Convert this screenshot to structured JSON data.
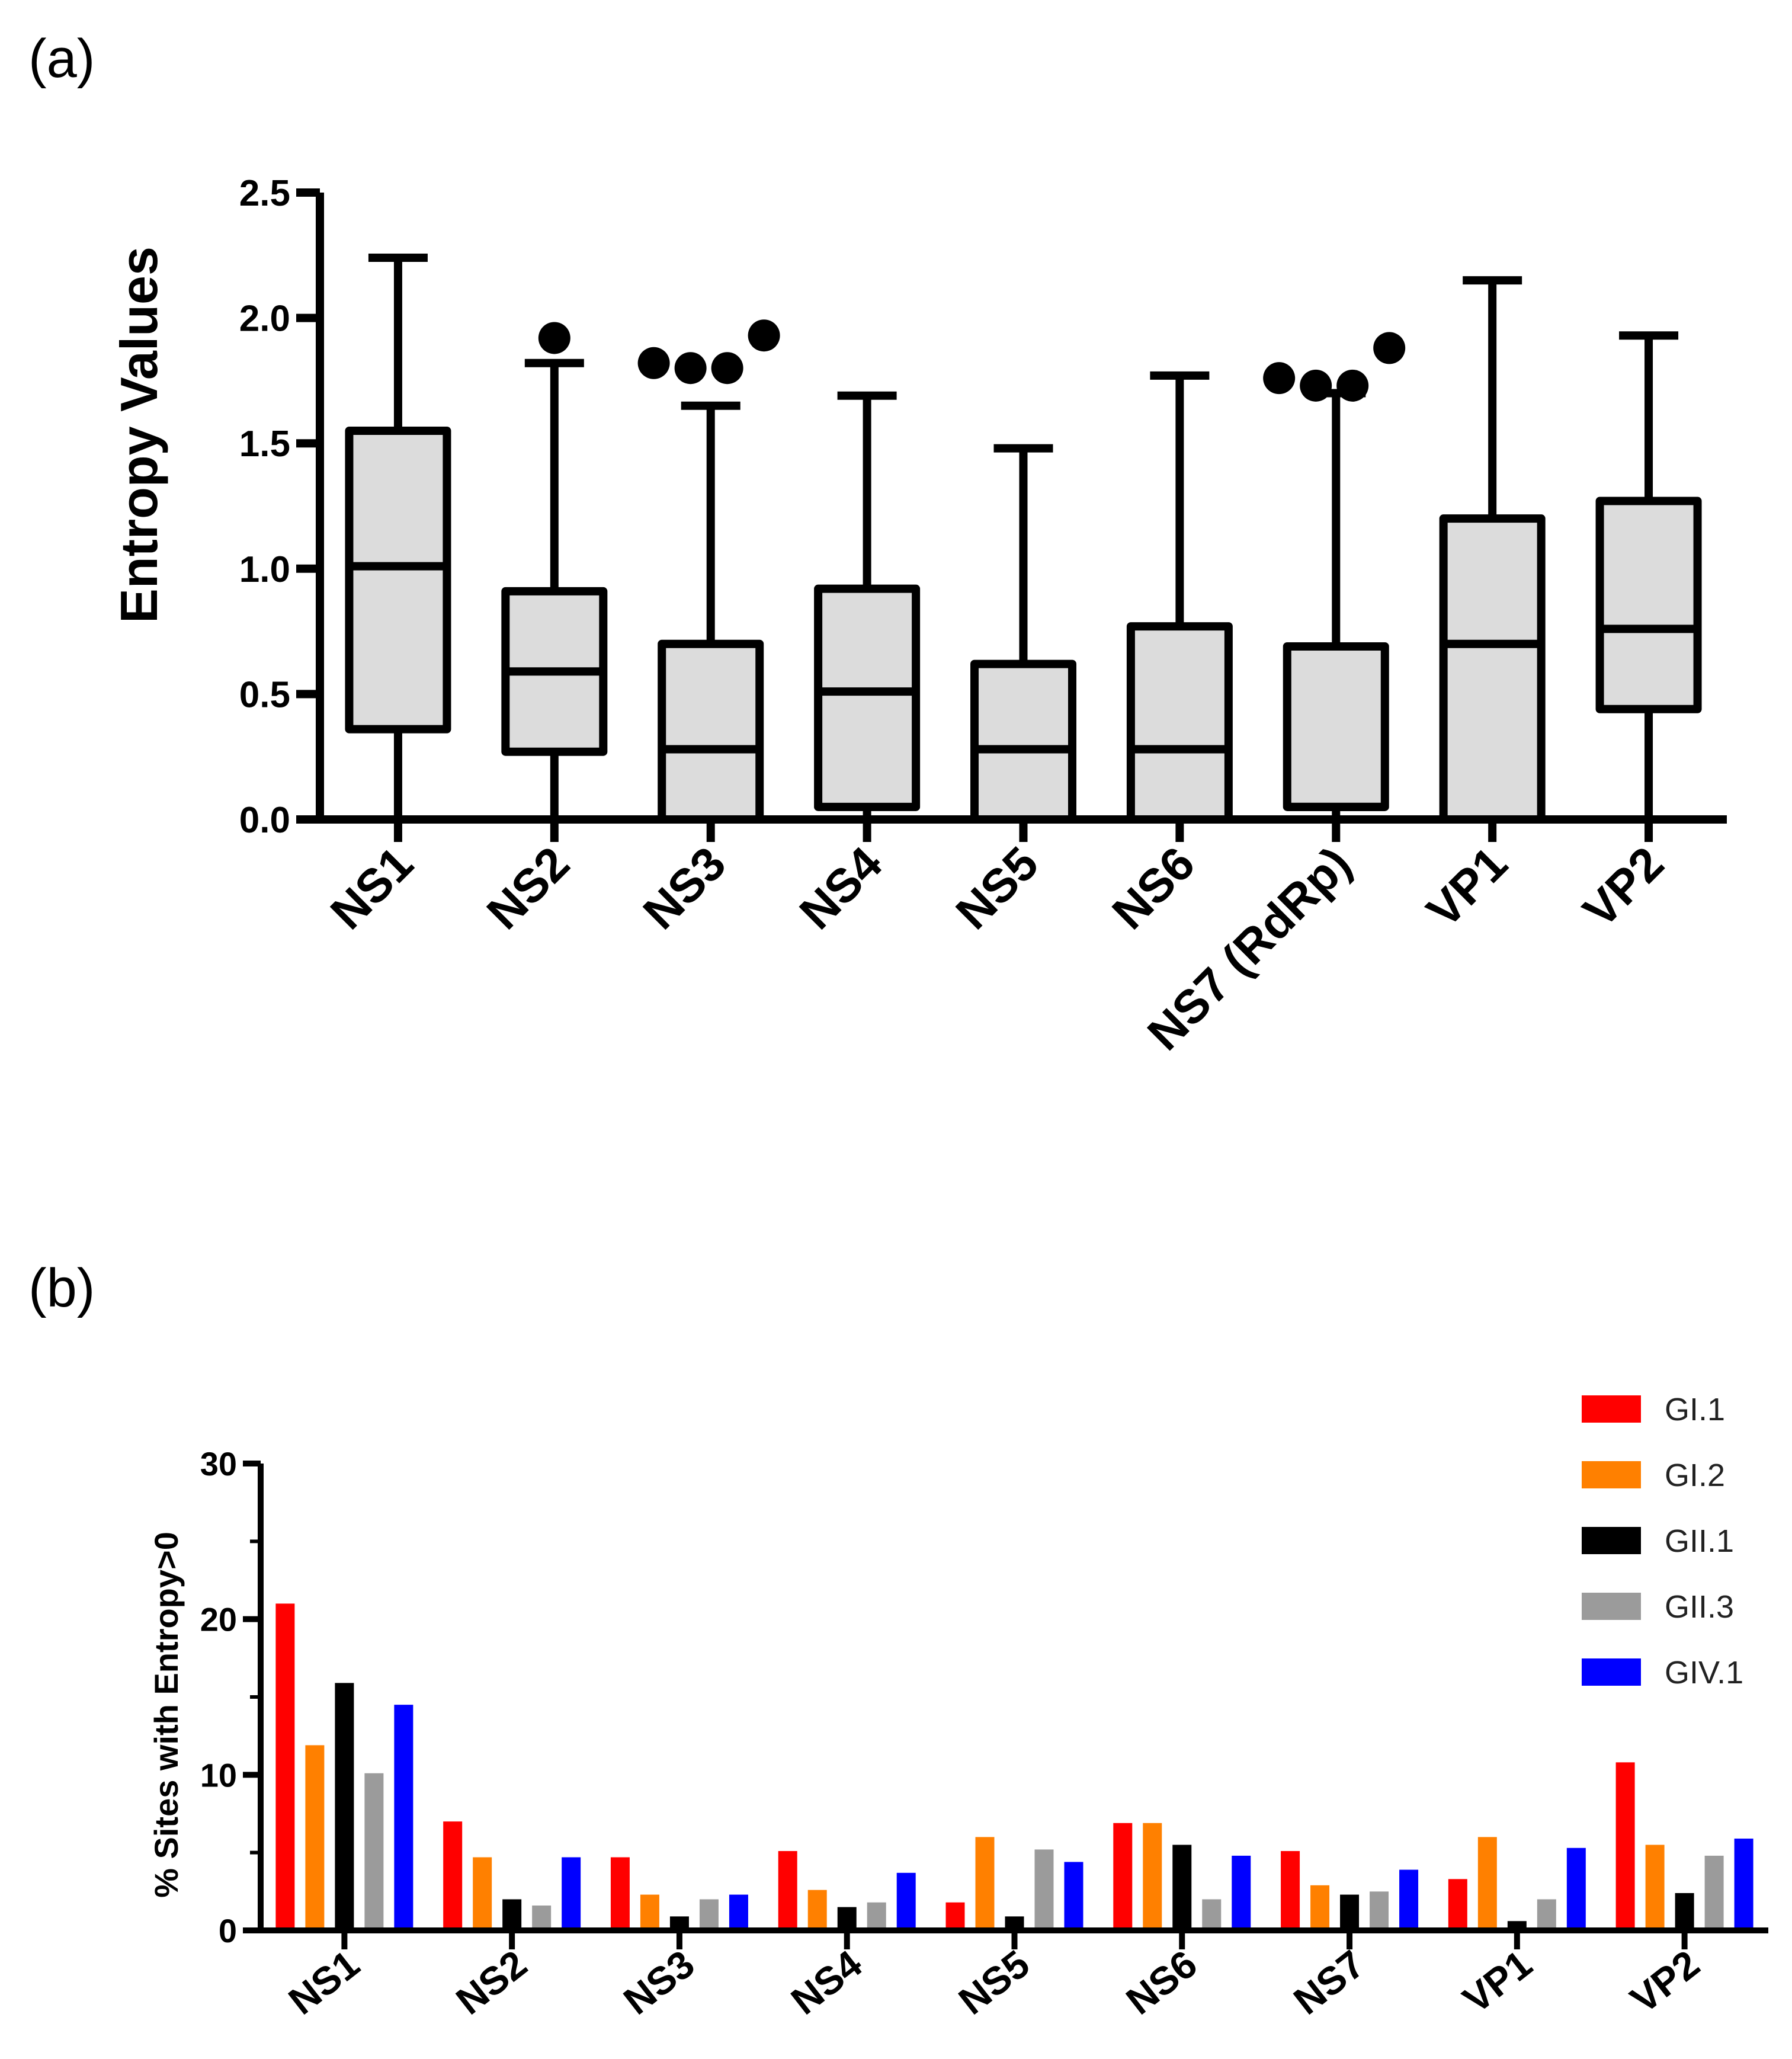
{
  "figure": {
    "panel_a_label": "(a)",
    "panel_b_label": "(b)"
  },
  "chart_data": [
    {
      "type": "box",
      "title": "",
      "xlabel": "",
      "ylabel": "Entropy Values",
      "ylim": [
        0,
        2.5
      ],
      "yticks": [
        "0.0",
        "0.5",
        "1.0",
        "1.5",
        "2.0",
        "2.5"
      ],
      "categories": [
        "NS1",
        "NS2",
        "NS3",
        "NS4",
        "NS5",
        "NS6",
        "NS7 (RdRp)",
        "VP1",
        "VP2"
      ],
      "boxes": [
        {
          "min": 0.0,
          "q1": 0.36,
          "median": 1.01,
          "q3": 1.55,
          "max": 2.24,
          "outliers": []
        },
        {
          "min": 0.0,
          "q1": 0.27,
          "median": 0.59,
          "q3": 0.91,
          "max": 1.82,
          "outliers": [
            1.92
          ]
        },
        {
          "min": 0.0,
          "q1": 0.0,
          "median": 0.28,
          "q3": 0.7,
          "max": 1.65,
          "outliers": [
            1.82,
            1.8,
            1.8,
            1.93
          ]
        },
        {
          "min": 0.0,
          "q1": 0.05,
          "median": 0.51,
          "q3": 0.92,
          "max": 1.69,
          "outliers": []
        },
        {
          "min": 0.0,
          "q1": 0.0,
          "median": 0.28,
          "q3": 0.62,
          "max": 1.48,
          "outliers": []
        },
        {
          "min": 0.0,
          "q1": 0.0,
          "median": 0.28,
          "q3": 0.77,
          "max": 1.77,
          "outliers": []
        },
        {
          "min": 0.0,
          "q1": 0.05,
          "median": 0.05,
          "q3": 0.69,
          "max": 1.7,
          "outliers": [
            1.76,
            1.73,
            1.73,
            1.88
          ]
        },
        {
          "min": 0.0,
          "q1": 0.0,
          "median": 0.7,
          "q3": 1.2,
          "max": 2.15,
          "outliers": []
        },
        {
          "min": 0.0,
          "q1": 0.44,
          "median": 0.76,
          "q3": 1.27,
          "max": 1.93,
          "outliers": []
        }
      ]
    },
    {
      "type": "bar",
      "title": "",
      "xlabel": "",
      "ylabel": "% Sites with Entropy>0",
      "ylim": [
        0,
        30
      ],
      "yticks": [
        "0",
        "10",
        "20",
        "30"
      ],
      "categories": [
        "NS1",
        "NS2",
        "NS3",
        "NS4",
        "NS5",
        "NS6",
        "NS7",
        "VP1",
        "VP2"
      ],
      "legend_position": "top-right",
      "series": [
        {
          "name": "GI.1",
          "color": "#ff0000",
          "values": [
            21.0,
            7.0,
            4.7,
            5.1,
            1.8,
            6.9,
            5.1,
            3.3,
            10.8
          ]
        },
        {
          "name": "GI.2",
          "color": "#ff8000",
          "values": [
            11.9,
            4.7,
            2.3,
            2.6,
            6.0,
            6.9,
            2.9,
            6.0,
            5.5
          ]
        },
        {
          "name": "GII.1",
          "color": "#000000",
          "values": [
            15.9,
            2.0,
            0.9,
            1.5,
            0.9,
            5.5,
            2.3,
            0.6,
            2.4
          ]
        },
        {
          "name": "GII.3",
          "color": "#9b9b9b",
          "values": [
            10.1,
            1.6,
            2.0,
            1.8,
            5.2,
            2.0,
            2.5,
            2.0,
            4.8
          ]
        },
        {
          "name": "GIV.1",
          "color": "#0000ff",
          "values": [
            14.5,
            4.7,
            2.3,
            3.7,
            4.4,
            4.8,
            3.9,
            5.3,
            5.9
          ]
        }
      ]
    }
  ]
}
